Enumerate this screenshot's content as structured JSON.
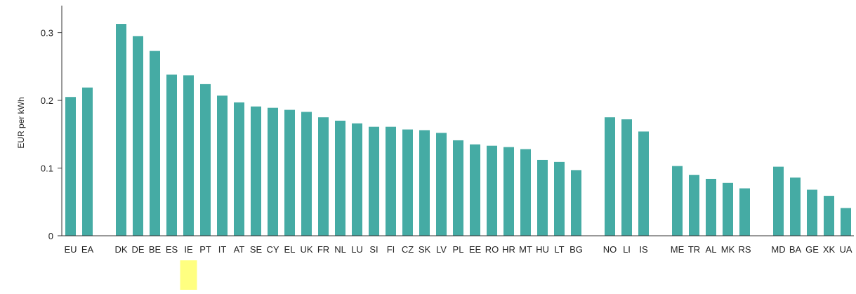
{
  "colors": {
    "bar": "#45ABA4",
    "highlight": "#FFFF80",
    "axis": "#333333",
    "text": "#222222"
  },
  "chart_data": {
    "type": "bar",
    "title": "",
    "xlabel": "",
    "ylabel": "EUR per kWh",
    "ylim": [
      0,
      0.34
    ],
    "yticks": [
      {
        "value": 0,
        "label": "0"
      },
      {
        "value": 0.1,
        "label": "0.1"
      },
      {
        "value": 0.2,
        "label": "0.2"
      },
      {
        "value": 0.3,
        "label": "0.3"
      }
    ],
    "grid": false,
    "legend": "none",
    "highlighted_category": "IE",
    "categories": [
      "EU",
      "EA",
      "DK",
      "DE",
      "BE",
      "ES",
      "IE",
      "PT",
      "IT",
      "AT",
      "SE",
      "CY",
      "EL",
      "UK",
      "FR",
      "NL",
      "LU",
      "SI",
      "FI",
      "CZ",
      "SK",
      "LV",
      "PL",
      "EE",
      "RO",
      "HR",
      "MT",
      "HU",
      "LT",
      "BG",
      "NO",
      "LI",
      "IS",
      "ME",
      "TR",
      "AL",
      "MK",
      "RS",
      "MD",
      "BA",
      "GE",
      "XK",
      "UA"
    ],
    "groups": [
      [
        {
          "category": "EU",
          "value": 0.205
        },
        {
          "category": "EA",
          "value": 0.219
        }
      ],
      [
        {
          "category": "DK",
          "value": 0.313
        },
        {
          "category": "DE",
          "value": 0.295
        },
        {
          "category": "BE",
          "value": 0.273
        },
        {
          "category": "ES",
          "value": 0.238
        },
        {
          "category": "IE",
          "value": 0.237
        },
        {
          "category": "PT",
          "value": 0.224
        },
        {
          "category": "IT",
          "value": 0.207
        },
        {
          "category": "AT",
          "value": 0.197
        },
        {
          "category": "SE",
          "value": 0.191
        },
        {
          "category": "CY",
          "value": 0.189
        },
        {
          "category": "EL",
          "value": 0.186
        },
        {
          "category": "UK",
          "value": 0.183
        },
        {
          "category": "FR",
          "value": 0.175
        },
        {
          "category": "NL",
          "value": 0.17
        },
        {
          "category": "LU",
          "value": 0.166
        },
        {
          "category": "SI",
          "value": 0.161
        },
        {
          "category": "FI",
          "value": 0.161
        },
        {
          "category": "CZ",
          "value": 0.157
        },
        {
          "category": "SK",
          "value": 0.156
        },
        {
          "category": "LV",
          "value": 0.152
        },
        {
          "category": "PL",
          "value": 0.141
        },
        {
          "category": "EE",
          "value": 0.135
        },
        {
          "category": "RO",
          "value": 0.133
        },
        {
          "category": "HR",
          "value": 0.131
        },
        {
          "category": "MT",
          "value": 0.128
        },
        {
          "category": "HU",
          "value": 0.112
        },
        {
          "category": "LT",
          "value": 0.109
        },
        {
          "category": "BG",
          "value": 0.097
        }
      ],
      [
        {
          "category": "NO",
          "value": 0.175
        },
        {
          "category": "LI",
          "value": 0.172
        },
        {
          "category": "IS",
          "value": 0.154
        }
      ],
      [
        {
          "category": "ME",
          "value": 0.103
        },
        {
          "category": "TR",
          "value": 0.09
        },
        {
          "category": "AL",
          "value": 0.084
        },
        {
          "category": "MK",
          "value": 0.078
        },
        {
          "category": "RS",
          "value": 0.07
        }
      ],
      [
        {
          "category": "MD",
          "value": 0.102
        },
        {
          "category": "BA",
          "value": 0.086
        },
        {
          "category": "GE",
          "value": 0.068
        },
        {
          "category": "XK",
          "value": 0.059
        },
        {
          "category": "UA",
          "value": 0.041
        }
      ]
    ]
  }
}
